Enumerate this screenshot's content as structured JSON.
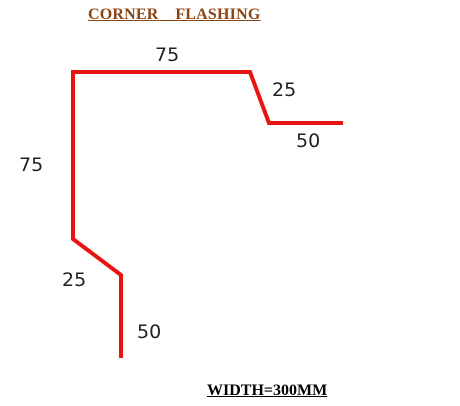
{
  "title": "CORNER    FLASHING",
  "width_label": "WIDTH=300MM",
  "colors": {
    "title": "#8B4513",
    "profile_line": "#E8140F",
    "dimension_text": "#222222"
  },
  "profile": {
    "segments": [
      {
        "name": "top-flange",
        "length": "75"
      },
      {
        "name": "top-slope",
        "length": "25"
      },
      {
        "name": "top-return",
        "length": "50"
      },
      {
        "name": "vertical-side",
        "length": "75"
      },
      {
        "name": "bottom-slope",
        "length": "25"
      },
      {
        "name": "bottom-return",
        "length": "50"
      }
    ]
  }
}
